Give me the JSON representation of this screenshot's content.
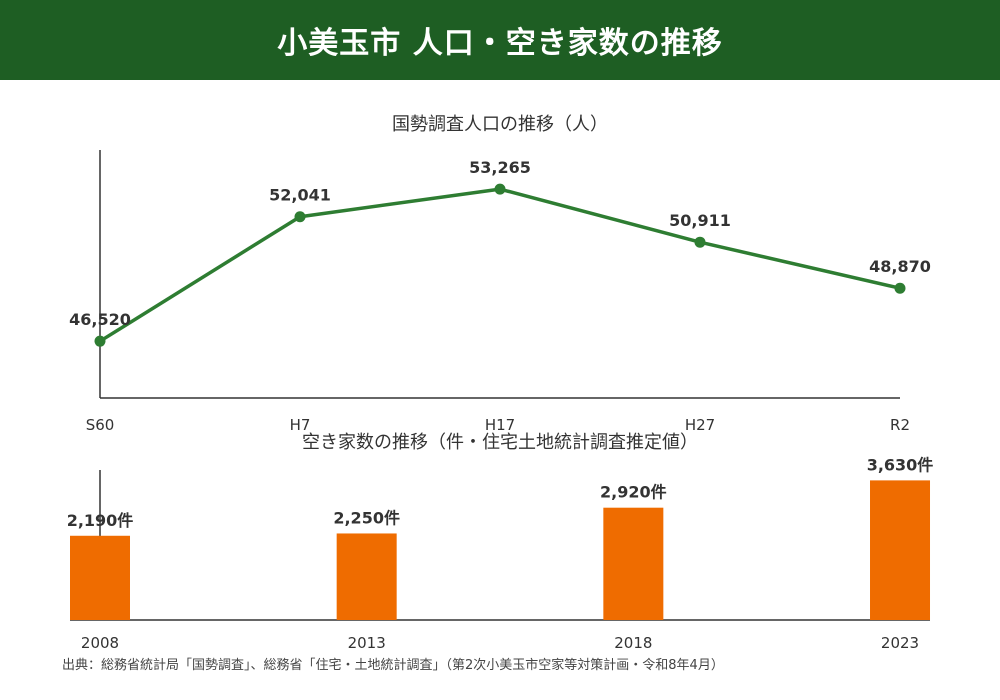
{
  "header": {
    "title": "小美玉市 人口・空き家数の推移"
  },
  "colors": {
    "header_bg": "#1e5e23",
    "line": "#2e7d32",
    "bar": "#ef6c00"
  },
  "chart_data": [
    {
      "type": "line",
      "title": "国勢調査人口の推移（人）",
      "categories": [
        "S60",
        "H7",
        "H17",
        "H27",
        "R2"
      ],
      "values": [
        46520,
        52041,
        53265,
        50911,
        48870
      ],
      "labels": [
        "46,520",
        "52,041",
        "53,265",
        "50,911",
        "48,870"
      ],
      "ylim": [
        44000,
        55000
      ],
      "grid": false
    },
    {
      "type": "bar",
      "title": "空き家数の推移（件・住宅土地統計調査推定値）",
      "categories": [
        "2008",
        "2013",
        "2018",
        "2023"
      ],
      "values": [
        2190,
        2250,
        2920,
        3630
      ],
      "labels": [
        "2,190件",
        "2,250件",
        "2,920件",
        "3,630件"
      ],
      "ylim": [
        0,
        3900
      ],
      "grid": false
    }
  ],
  "footer": {
    "source": "出典：総務省統計局「国勢調査」、総務省「住宅・土地統計調査」（第2次小美玉市空家等対策計画・令和8年4月）"
  }
}
